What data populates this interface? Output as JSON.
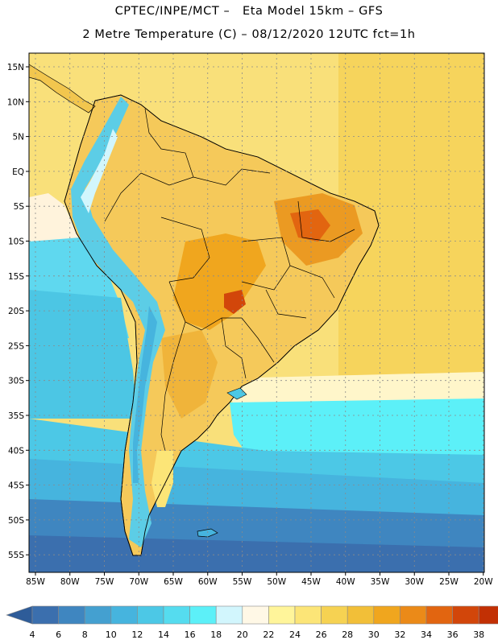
{
  "title": {
    "line1": "CPTEC/INPE/MCT –   Eta Model 15km – GFS",
    "line2": "2 Metre Temperature (C) – 08/12/2020 12UTC fct=1h"
  },
  "map": {
    "region": "South America",
    "lat_labels": [
      "15N",
      "10N",
      "5N",
      "EQ",
      "5S",
      "10S",
      "15S",
      "20S",
      "25S",
      "30S",
      "35S",
      "40S",
      "45S",
      "50S",
      "55S"
    ],
    "lon_labels": [
      "85W",
      "80W",
      "75W",
      "70W",
      "65W",
      "60W",
      "55W",
      "50W",
      "45W",
      "40W",
      "35W",
      "30W",
      "25W",
      "20W"
    ]
  },
  "colorbar": {
    "values": [
      "4",
      "6",
      "8",
      "10",
      "12",
      "14",
      "16",
      "18",
      "20",
      "22",
      "24",
      "26",
      "28",
      "30",
      "32",
      "34",
      "36",
      "38"
    ],
    "colors": [
      "#3b6fae",
      "#3f86c0",
      "#44a0d0",
      "#46b4de",
      "#4cc8e6",
      "#55dcef",
      "#5cf0f8",
      "#d2f6fd",
      "#fff8e6",
      "#fff59a",
      "#fce577",
      "#f6d252",
      "#f2bf38",
      "#f0a61e",
      "#eb8a18",
      "#e26510",
      "#d2460a",
      "#c23004"
    ],
    "arrow_low_color": "#2e5c99",
    "arrow_high_color": "#b22a02"
  }
}
